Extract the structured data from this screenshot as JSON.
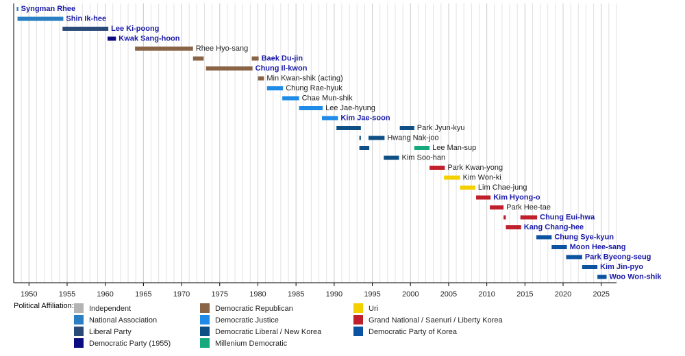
{
  "chart_data": {
    "type": "timeline",
    "xlim": [
      1948,
      2027
    ],
    "xticks": [
      1950,
      1955,
      1960,
      1965,
      1970,
      1975,
      1980,
      1985,
      1990,
      1995,
      2000,
      2005,
      2010,
      2015,
      2020,
      2025
    ],
    "minor_grid": true,
    "legend_title": "Political Affiliation:",
    "legend": [
      {
        "name": "Independent",
        "color": "#b4b4b4"
      },
      {
        "name": "National Association",
        "color": "#2a80c2"
      },
      {
        "name": "Liberal Party",
        "color": "#2c4a78"
      },
      {
        "name": "Democratic Party (1955)",
        "color": "#0b0b82"
      },
      {
        "name": "Democratic Republican",
        "color": "#8a6446"
      },
      {
        "name": "Democratic Justice",
        "color": "#1f8be6"
      },
      {
        "name": "Democratic Liberal / New Korea",
        "color": "#0e4f86"
      },
      {
        "name": "Millenium Democratic",
        "color": "#17a97e"
      },
      {
        "name": "Uri",
        "color": "#f5d000"
      },
      {
        "name": "Grand National / Saenuri / Liberty Korea",
        "color": "#c0202b"
      },
      {
        "name": "Democratic Party of Korea",
        "color": "#0b53a0"
      }
    ],
    "rows": [
      {
        "name": "Syngman Rhee",
        "label_color": "#1a1aa8",
        "bars": [
          {
            "start": 1948.4,
            "end": 1948.6,
            "color": "#2a80c2"
          }
        ]
      },
      {
        "name": "Shin Ik-hee",
        "label_color": "#1a1aa8",
        "bars": [
          {
            "start": 1948.5,
            "end": 1954.5,
            "color": "#2a80c2"
          }
        ]
      },
      {
        "name": "Lee Ki-poong",
        "label_color": "#1a1aa8",
        "bars": [
          {
            "start": 1954.4,
            "end": 1960.4,
            "color": "#2c4a78"
          }
        ]
      },
      {
        "name": "Kwak Sang-hoon",
        "label_color": "#1a1aa8",
        "bars": [
          {
            "start": 1960.3,
            "end": 1961.4,
            "color": "#0b0b82"
          }
        ]
      },
      {
        "name": "Rhee Hyo-sang",
        "label_color": "#222222",
        "bars": [
          {
            "start": 1963.9,
            "end": 1971.5,
            "color": "#8a6446"
          }
        ]
      },
      {
        "name": "Baek Du-jin",
        "label_color": "#1a1aa8",
        "bars": [
          {
            "start": 1971.5,
            "end": 1972.9,
            "color": "#8a6446"
          },
          {
            "start": 1979.2,
            "end": 1980.1,
            "color": "#8a6446"
          }
        ]
      },
      {
        "name": "Chung Il-kwon",
        "label_color": "#1a1aa8",
        "bars": [
          {
            "start": 1973.2,
            "end": 1979.3,
            "color": "#8a6446"
          }
        ]
      },
      {
        "name": "Min Kwan-shik (acting)",
        "label_color": "#222222",
        "bars": [
          {
            "start": 1980.0,
            "end": 1980.8,
            "color": "#8a6446"
          }
        ]
      },
      {
        "name": "Chung Rae-hyuk",
        "label_color": "#222222",
        "bars": [
          {
            "start": 1981.2,
            "end": 1983.3,
            "color": "#1f8be6"
          }
        ]
      },
      {
        "name": "Chae Mun-shik",
        "label_color": "#222222",
        "bars": [
          {
            "start": 1983.2,
            "end": 1985.4,
            "color": "#1f8be6"
          }
        ]
      },
      {
        "name": "Lee Jae-hyung",
        "label_color": "#222222",
        "bars": [
          {
            "start": 1985.4,
            "end": 1988.5,
            "color": "#1f8be6"
          }
        ]
      },
      {
        "name": "Kim Jae-soon",
        "label_color": "#1a1aa8",
        "bars": [
          {
            "start": 1988.4,
            "end": 1990.5,
            "color": "#1f8be6"
          }
        ]
      },
      {
        "name": "Park Jyun-kyu",
        "label_color": "#222222",
        "bars": [
          {
            "start": 1990.3,
            "end": 1993.5,
            "color": "#0e4f86"
          },
          {
            "start": 1998.6,
            "end": 2000.5,
            "color": "#0e4f86"
          }
        ]
      },
      {
        "name": "Hwang Nak-joo",
        "label_color": "#222222",
        "bars": [
          {
            "start": 1993.3,
            "end": 1993.5,
            "color": "#0e4f86"
          },
          {
            "start": 1994.5,
            "end": 1996.6,
            "color": "#0e4f86"
          }
        ]
      },
      {
        "name": "Lee Man-sup",
        "label_color": "#222222",
        "bars": [
          {
            "start": 1993.3,
            "end": 1994.6,
            "color": "#0e4f86"
          },
          {
            "start": 2000.5,
            "end": 2002.5,
            "color": "#17a97e"
          }
        ]
      },
      {
        "name": "Kim Soo-han",
        "label_color": "#222222",
        "bars": [
          {
            "start": 1996.5,
            "end": 1998.5,
            "color": "#0e4f86"
          }
        ]
      },
      {
        "name": "Park Kwan-yong",
        "label_color": "#222222",
        "bars": [
          {
            "start": 2002.5,
            "end": 2004.5,
            "color": "#c0202b"
          }
        ]
      },
      {
        "name": "Kim Won-ki",
        "label_color": "#222222",
        "bars": [
          {
            "start": 2004.4,
            "end": 2006.5,
            "color": "#f5d000"
          }
        ]
      },
      {
        "name": "Lim Chae-jung",
        "label_color": "#222222",
        "bars": [
          {
            "start": 2006.5,
            "end": 2008.5,
            "color": "#f5d000"
          }
        ]
      },
      {
        "name": "Kim Hyong-o",
        "label_color": "#1a1aa8",
        "bars": [
          {
            "start": 2008.6,
            "end": 2010.5,
            "color": "#c0202b"
          }
        ]
      },
      {
        "name": "Park Hee-tae",
        "label_color": "#222222",
        "bars": [
          {
            "start": 2010.4,
            "end": 2012.2,
            "color": "#c0202b"
          }
        ]
      },
      {
        "name": "Chung Eui-hwa",
        "label_color": "#1a1aa8",
        "bars": [
          {
            "start": 2012.2,
            "end": 2012.5,
            "color": "#c0202b"
          },
          {
            "start": 2014.4,
            "end": 2016.6,
            "color": "#c0202b"
          }
        ]
      },
      {
        "name": "Kang Chang-hee",
        "label_color": "#1a1aa8",
        "bars": [
          {
            "start": 2012.5,
            "end": 2014.5,
            "color": "#c0202b"
          }
        ]
      },
      {
        "name": "Chung Sye-kyun",
        "label_color": "#1a1aa8",
        "bars": [
          {
            "start": 2016.5,
            "end": 2018.5,
            "color": "#0b53a0"
          }
        ]
      },
      {
        "name": "Moon Hee-sang",
        "label_color": "#1a1aa8",
        "bars": [
          {
            "start": 2018.5,
            "end": 2020.5,
            "color": "#0b53a0"
          }
        ]
      },
      {
        "name": "Park Byeong-seug",
        "label_color": "#1a1aa8",
        "bars": [
          {
            "start": 2020.4,
            "end": 2022.5,
            "color": "#0b53a0"
          }
        ]
      },
      {
        "name": "Kim Jin-pyo",
        "label_color": "#1a1aa8",
        "bars": [
          {
            "start": 2022.5,
            "end": 2024.5,
            "color": "#0b53a0"
          }
        ]
      },
      {
        "name": "Woo Won-shik",
        "label_color": "#1a1aa8",
        "bars": [
          {
            "start": 2024.5,
            "end": 2025.7,
            "color": "#0b53a0"
          }
        ]
      }
    ]
  }
}
